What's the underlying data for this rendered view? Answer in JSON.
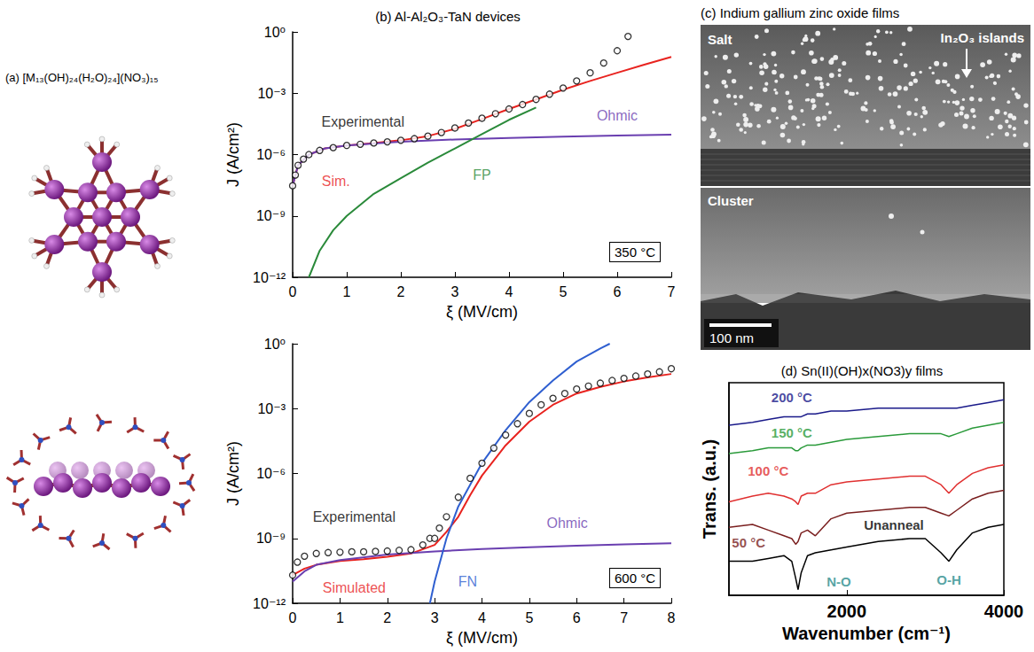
{
  "panel_a": {
    "letter": "(a)",
    "title": "[M₁₃(OH)₂₄(H₂O)₂₄](NO₃)₁₅"
  },
  "panel_c": {
    "letter": "(c)",
    "title": "Indium gallium zinc oxide films",
    "top_image": "Salt",
    "island_label": "In₂O₃ islands",
    "bottom_image": "Cluster",
    "scale_bar": "100 nm"
  },
  "chart_data": [
    {
      "type": "line",
      "title": "(b) Al-Al₂O₃-TaN devices",
      "x_label": "ξ (MV/cm)",
      "y_label": "J (A/cm²)",
      "log": "y",
      "condition": "350 °C",
      "xlim": [
        0,
        7
      ],
      "xticks": [
        0,
        1,
        2,
        3,
        4,
        5,
        6,
        7
      ],
      "ylim": [
        1e-12,
        1
      ],
      "yticks": [
        {
          "value": 1e-12,
          "label": "10⁻¹²"
        },
        {
          "value": 1e-09,
          "label": "10⁻⁹"
        },
        {
          "value": 1e-06,
          "label": "10⁻⁶"
        },
        {
          "value": 0.001,
          "label": "10⁻³"
        },
        {
          "value": 1,
          "label": "10⁰"
        }
      ],
      "series": [
        {
          "name": "Experimental",
          "type": "scatter",
          "marker": "open_circle",
          "color": "#000000",
          "x": [
            0,
            0.05,
            0.1,
            0.2,
            0.3,
            0.5,
            0.75,
            1,
            1.25,
            1.5,
            1.75,
            2,
            2.25,
            2.5,
            2.75,
            3,
            3.25,
            3.5,
            3.75,
            4,
            4.25,
            4.5,
            4.75,
            5,
            5.25,
            5.5,
            5.75,
            6,
            6.2
          ],
          "values": [
            3e-08,
            1e-07,
            3e-07,
            6e-07,
            1e-06,
            1.6e-06,
            2.2e-06,
            2.8e-06,
            3.2e-06,
            3.7e-06,
            4.2e-06,
            5e-06,
            6e-06,
            8e-06,
            1.2e-05,
            2e-05,
            3.5e-05,
            6e-05,
            0.0001,
            0.00017,
            0.00028,
            0.0005,
            0.0009,
            0.0018,
            0.004,
            0.01,
            0.03,
            0.12,
            0.6
          ]
        },
        {
          "name": "Sim.",
          "type": "line",
          "color": "#e8231f",
          "x": [
            0,
            0.1,
            0.3,
            0.6,
            1,
            1.5,
            2,
            2.5,
            3,
            3.5,
            4,
            4.5,
            5,
            5.5,
            6,
            6.5,
            7
          ],
          "values": [
            3e-08,
            3e-07,
            1e-06,
            2e-06,
            2.8e-06,
            3.7e-06,
            5e-06,
            8e-06,
            1.8e-05,
            5.5e-05,
            0.00017,
            0.0005,
            0.0015,
            0.004,
            0.01,
            0.025,
            0.06
          ]
        },
        {
          "name": "Ohmic",
          "type": "line",
          "color": "#6a3fb0",
          "x": [
            0,
            0.1,
            0.3,
            0.6,
            1,
            1.5,
            2,
            3,
            4,
            5,
            6,
            7
          ],
          "values": [
            3e-08,
            3e-07,
            1e-06,
            2e-06,
            2.8e-06,
            3.5e-06,
            4.2e-06,
            5.5e-06,
            6.5e-06,
            7.5e-06,
            8.5e-06,
            9.5e-06
          ]
        },
        {
          "name": "FP",
          "type": "line",
          "color": "#2a8a3a",
          "x": [
            0.3,
            0.5,
            0.75,
            1,
            1.5,
            2,
            2.5,
            3,
            3.5,
            4,
            4.5
          ],
          "values": [
            1e-12,
            2e-11,
            2e-10,
            1e-09,
            1.2e-08,
            7e-08,
            4e-07,
            2e-06,
            1e-05,
            5e-05,
            0.0002
          ]
        }
      ],
      "annotations": [
        {
          "text": "Experimental",
          "x": 1.3,
          "y": 4e-05,
          "color": "#000000"
        },
        {
          "text": "Sim.",
          "x": 0.8,
          "y": 5e-08,
          "color": "#e8231f"
        },
        {
          "text": "Ohmic",
          "x": 6,
          "y": 8e-05,
          "color": "#6a3fb0"
        },
        {
          "text": "FP",
          "x": 3.5,
          "y": 1e-07,
          "color": "#2a8a3a"
        }
      ]
    },
    {
      "type": "line",
      "x_label": "ξ (MV/cm)",
      "y_label": "J (A/cm²)",
      "log": "y",
      "condition": "600 °C",
      "xlim": [
        0,
        8
      ],
      "xticks": [
        0,
        1,
        2,
        3,
        4,
        5,
        6,
        7,
        8
      ],
      "ylim": [
        1e-12,
        1
      ],
      "yticks": [
        {
          "value": 1e-12,
          "label": "10⁻¹²"
        },
        {
          "value": 1e-09,
          "label": "10⁻⁹"
        },
        {
          "value": 1e-06,
          "label": "10⁻⁶"
        },
        {
          "value": 0.001,
          "label": "10⁻³"
        },
        {
          "value": 1,
          "label": "10⁰"
        }
      ],
      "series": [
        {
          "name": "Experimental",
          "type": "scatter",
          "marker": "open_circle",
          "color": "#000000",
          "x": [
            0,
            0.1,
            0.25,
            0.5,
            0.75,
            1,
            1.25,
            1.5,
            1.75,
            2,
            2.25,
            2.5,
            2.75,
            2.9,
            3,
            3.1,
            3.25,
            3.5,
            3.75,
            4,
            4.25,
            4.5,
            4.75,
            5,
            5.25,
            5.5,
            5.75,
            6,
            6.25,
            6.5,
            6.75,
            7,
            7.25,
            7.5,
            7.75,
            8
          ],
          "values": [
            2e-11,
            8e-11,
            1.5e-10,
            2e-10,
            2.2e-10,
            2.3e-10,
            2.4e-10,
            2.4e-10,
            2.5e-10,
            2.6e-10,
            2.8e-10,
            3e-10,
            5e-10,
            1e-09,
            1e-09,
            3e-09,
            1e-08,
            8e-08,
            6e-07,
            3e-06,
            1.5e-05,
            6e-05,
            0.0002,
            0.0006,
            0.0015,
            0.003,
            0.005,
            0.008,
            0.011,
            0.015,
            0.02,
            0.025,
            0.032,
            0.04,
            0.05,
            0.07
          ]
        },
        {
          "name": "Simulated",
          "type": "line",
          "color": "#e8231f",
          "x": [
            0,
            0.25,
            0.5,
            1,
            1.5,
            2,
            2.5,
            3,
            3.25,
            3.5,
            3.75,
            4,
            4.5,
            5,
            5.5,
            6,
            6.5,
            7,
            7.5,
            8
          ],
          "values": [
            2e-11,
            4e-11,
            6e-11,
            9e-11,
            1.1e-10,
            1.4e-10,
            2e-10,
            5e-10,
            2e-09,
            1e-08,
            1e-07,
            8e-07,
            2e-05,
            0.00025,
            0.0015,
            0.005,
            0.01,
            0.018,
            0.028,
            0.04
          ]
        },
        {
          "name": "Ohmic",
          "type": "line",
          "color": "#6a3fb0",
          "x": [
            0,
            0.25,
            0.5,
            1,
            2,
            3,
            4,
            5,
            6,
            7,
            8
          ],
          "values": [
            1e-11,
            3e-11,
            6e-11,
            1e-10,
            1.8e-10,
            2.5e-10,
            3.2e-10,
            3.9e-10,
            4.6e-10,
            5.3e-10,
            6e-10
          ]
        },
        {
          "name": "FN",
          "type": "line",
          "color": "#2f5fd0",
          "x": [
            2.9,
            3,
            3.25,
            3.5,
            4,
            4.5,
            5,
            5.5,
            6,
            6.5,
            6.7
          ],
          "values": [
            1e-12,
            1e-11,
            1e-09,
            3e-08,
            3e-06,
            0.0001,
            0.002,
            0.02,
            0.15,
            0.6,
            1
          ]
        }
      ],
      "annotations": [
        {
          "text": "Experimental",
          "x": 1.3,
          "y": 1e-08,
          "color": "#000000"
        },
        {
          "text": "Simulated",
          "x": 1.3,
          "y": 5e-12,
          "color": "#e8231f"
        },
        {
          "text": "Ohmic",
          "x": 5.8,
          "y": 5e-09,
          "color": "#6a3fb0"
        },
        {
          "text": "FN",
          "x": 3.7,
          "y": 1e-11,
          "color": "#2f5fd0"
        }
      ]
    },
    {
      "type": "line",
      "title": "(d) Sn(II)(OH)x(NO3)y films",
      "x_label": "Wavenumber (cm⁻¹)",
      "y_label": "Trans. (a.u.)",
      "tick_labels": "x",
      "xlim": [
        500,
        4000
      ],
      "xticks": [
        2000,
        4000
      ],
      "ylim": [
        0,
        7.5
      ],
      "x": [
        500,
        800,
        1000,
        1200,
        1300,
        1350,
        1380,
        1420,
        1500,
        1600,
        1800,
        2000,
        2400,
        2800,
        3000,
        3200,
        3300,
        3400,
        3600,
        3800,
        4000
      ],
      "series": [
        {
          "name": "Unanneal",
          "color": "#000000",
          "values": [
            1.2,
            1.2,
            1.3,
            1.4,
            1.2,
            0.6,
            0.2,
            0.8,
            1.4,
            1.5,
            1.6,
            1.7,
            1.9,
            2.0,
            2.0,
            1.5,
            1.2,
            1.6,
            2.2,
            2.4,
            2.5
          ]
        },
        {
          "name": "50 °C",
          "color": "#7a1f1f",
          "values": [
            2.4,
            2.5,
            2.3,
            2.1,
            2.0,
            1.8,
            1.9,
            2.2,
            2.3,
            2.1,
            2.7,
            2.9,
            3.0,
            3.1,
            3.1,
            2.9,
            2.8,
            3.0,
            3.4,
            3.6,
            3.7
          ]
        },
        {
          "name": "100 °C",
          "color": "#e03030",
          "values": [
            3.3,
            3.5,
            3.6,
            3.5,
            3.4,
            3.3,
            3.2,
            3.5,
            3.6,
            3.6,
            3.9,
            4.0,
            4.1,
            4.2,
            4.2,
            3.9,
            3.6,
            3.9,
            4.3,
            4.5,
            4.6
          ]
        },
        {
          "name": "150 °C",
          "color": "#2a9a3a",
          "values": [
            5.0,
            5.1,
            5.2,
            5.2,
            5.2,
            5.1,
            5.1,
            5.2,
            5.3,
            5.3,
            5.4,
            5.5,
            5.6,
            5.7,
            5.7,
            5.7,
            5.6,
            5.7,
            5.9,
            6.0,
            6.1
          ]
        },
        {
          "name": "200 °C",
          "color": "#1a1a8a",
          "values": [
            6.0,
            6.1,
            6.2,
            6.3,
            6.3,
            6.3,
            6.3,
            6.3,
            6.4,
            6.4,
            6.5,
            6.5,
            6.6,
            6.6,
            6.6,
            6.6,
            6.6,
            6.6,
            6.7,
            6.8,
            6.9
          ]
        }
      ],
      "annotations": [
        {
          "text": "200 °C",
          "x": 1300,
          "y": 7.0,
          "color": "#1a1a8a"
        },
        {
          "text": "150 °C",
          "x": 1300,
          "y": 5.75,
          "color": "#2a9a3a"
        },
        {
          "text": "100 °C",
          "x": 1000,
          "y": 4.4,
          "color": "#e03030"
        },
        {
          "text": "50 °C",
          "x": 750,
          "y": 1.85,
          "color": "#7a1f1f"
        },
        {
          "text": "Unanneal",
          "x": 2600,
          "y": 2.5,
          "color": "#000000"
        },
        {
          "text": "N-O",
          "x": 1900,
          "y": 0.5,
          "color": "#2a8c8c"
        },
        {
          "text": "O-H",
          "x": 3300,
          "y": 0.55,
          "color": "#2a8c8c"
        }
      ]
    }
  ]
}
